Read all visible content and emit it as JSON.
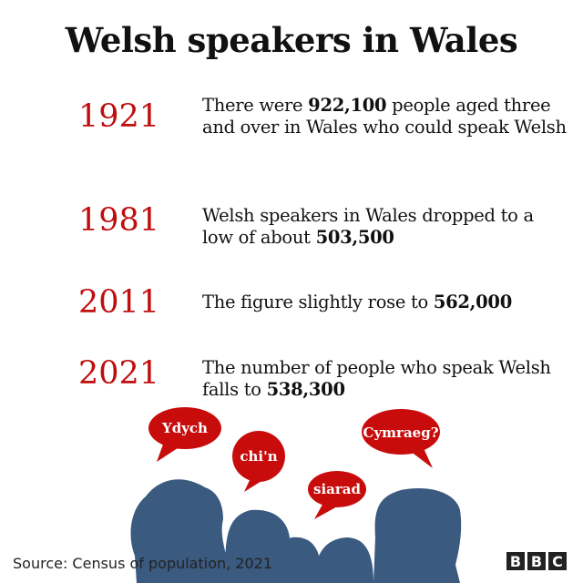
{
  "title": "Welsh speakers in Wales",
  "colors": {
    "year": "#c00d0d",
    "silhouette": "#3a5a80",
    "bubble": "#c80c0c"
  },
  "entries": [
    {
      "year": "1921",
      "pre": "There were ",
      "bold": "922,100",
      "post": " people aged three and over in Wales who could speak Welsh"
    },
    {
      "year": "1981",
      "pre": "Welsh speakers in Wales dropped to a low of about ",
      "bold": "503,500",
      "post": ""
    },
    {
      "year": "2011",
      "pre": "The figure slightly rose to ",
      "bold": "562,000",
      "post": ""
    },
    {
      "year": "2021",
      "pre": "The number of people who speak Welsh falls to ",
      "bold": "538,300",
      "post": ""
    }
  ],
  "bubbles": [
    "Ydych",
    "chi'n",
    "siarad",
    "Cymraeg?"
  ],
  "source": "Source: Census of population, 2021",
  "logo": "BBC"
}
